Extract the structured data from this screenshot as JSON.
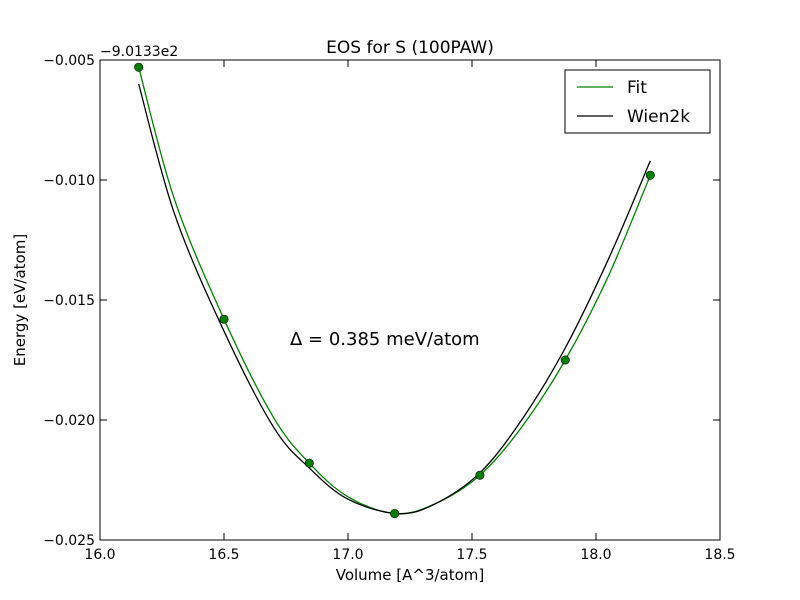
{
  "chart_data": {
    "type": "line",
    "title": "EOS for S (100PAW)",
    "xlabel": "Volume [A^3/atom]",
    "ylabel": "Energy [eV/atom]",
    "offset_label": "−9.0133e2",
    "xlim": [
      16.0,
      18.5
    ],
    "ylim": [
      -0.025,
      -0.005
    ],
    "xticks": [
      16.0,
      16.5,
      17.0,
      17.5,
      18.0,
      18.5
    ],
    "xtick_labels": [
      "16.0",
      "16.5",
      "17.0",
      "17.5",
      "18.0",
      "18.5"
    ],
    "yticks": [
      -0.025,
      -0.02,
      -0.015,
      -0.01,
      -0.005
    ],
    "ytick_labels": [
      "−0.025",
      "−0.020",
      "−0.015",
      "−0.010",
      "−0.005"
    ],
    "annotation": "Δ = 0.385 meV/atom",
    "legend_position": "top-right",
    "grid": false,
    "points": {
      "color": "#008000",
      "x": [
        16.156,
        16.5,
        16.844,
        17.188,
        17.532,
        17.876,
        18.219
      ],
      "y": [
        -0.0053,
        -0.0158,
        -0.0218,
        -0.0239,
        -0.0223,
        -0.0175,
        -0.0098
      ]
    },
    "series": [
      {
        "name": "Fit",
        "color": "#008000",
        "x": [
          16.156,
          16.3,
          16.5,
          16.7,
          16.844,
          17.0,
          17.188,
          17.35,
          17.532,
          17.7,
          17.876,
          18.05,
          18.219
        ],
        "y": [
          -0.0053,
          -0.0108,
          -0.0158,
          -0.0199,
          -0.0218,
          -0.0232,
          -0.0239,
          -0.0235,
          -0.0223,
          -0.0203,
          -0.0175,
          -0.014,
          -0.0098
        ]
      },
      {
        "name": "Wien2k",
        "color": "#000000",
        "x": [
          16.156,
          16.3,
          16.5,
          16.7,
          16.844,
          17.0,
          17.2,
          17.35,
          17.532,
          17.7,
          17.876,
          18.05,
          18.219
        ],
        "y": [
          -0.006,
          -0.0114,
          -0.0163,
          -0.0203,
          -0.022,
          -0.0233,
          -0.0239,
          -0.0235,
          -0.0222,
          -0.02,
          -0.017,
          -0.0133,
          -0.0092
        ]
      }
    ]
  }
}
